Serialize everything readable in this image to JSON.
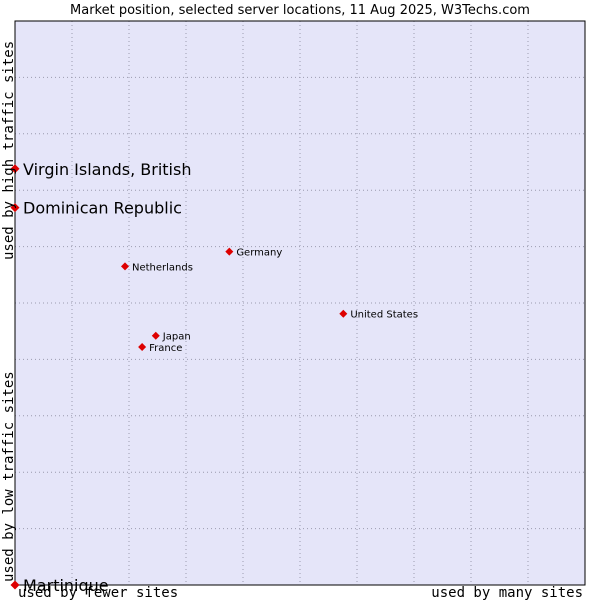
{
  "chart_data": {
    "type": "scatter",
    "title": "Market position, selected server locations, 11 Aug 2025, W3Techs.com",
    "xlabel_left": "used by fewer sites",
    "xlabel_right": "used by many sites",
    "ylabel_low": "used by low traffic sites",
    "ylabel_high": "used by high traffic sites",
    "xlim": [
      0,
      100
    ],
    "ylim": [
      0,
      100
    ],
    "grid": true,
    "colors": {
      "plot_bg": "#e5e5f9",
      "grid": "#9a9aae",
      "point": "#dd0000",
      "axis": "#000000"
    },
    "points": [
      {
        "label": "Virgin Islands, British",
        "x": 0.0,
        "y": 73.8,
        "size": "large"
      },
      {
        "label": "Dominican Republic",
        "x": 0.0,
        "y": 66.9,
        "size": "large"
      },
      {
        "label": "Germany",
        "x": 37.6,
        "y": 59.1,
        "size": "small"
      },
      {
        "label": "Netherlands",
        "x": 19.3,
        "y": 56.5,
        "size": "small"
      },
      {
        "label": "United States",
        "x": 57.6,
        "y": 48.1,
        "size": "small"
      },
      {
        "label": "Japan",
        "x": 24.7,
        "y": 44.2,
        "size": "small"
      },
      {
        "label": "France",
        "x": 22.3,
        "y": 42.2,
        "size": "small"
      },
      {
        "label": "Martinique",
        "x": 0.0,
        "y": 0.0,
        "size": "large"
      }
    ]
  }
}
